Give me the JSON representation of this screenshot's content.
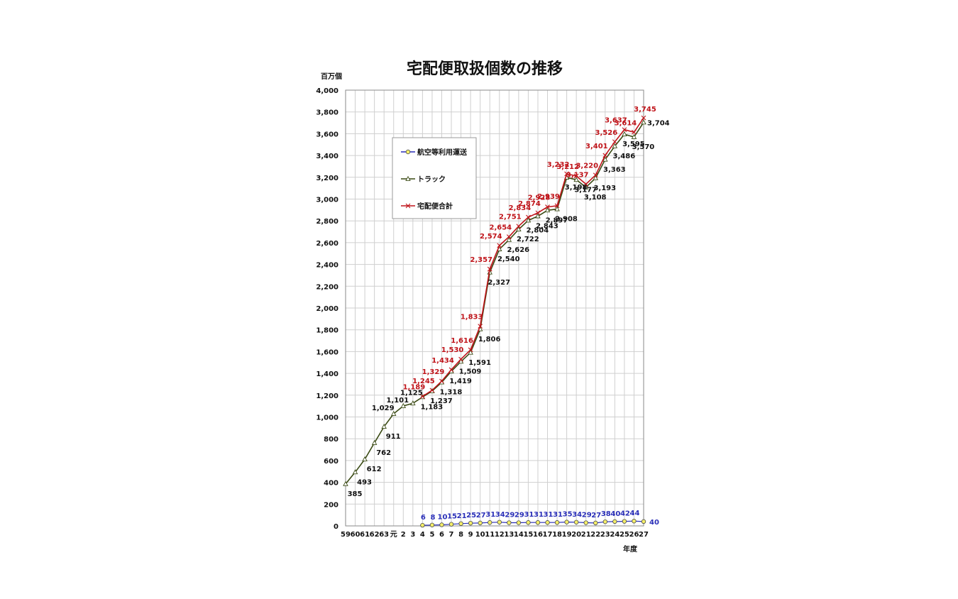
{
  "chart_data": {
    "type": "line",
    "title": "宅配便取扱個数の推移",
    "ylabel": "百万個",
    "xlabel": "年度",
    "ylim": [
      0,
      4000
    ],
    "yticks": [
      0,
      200,
      400,
      600,
      800,
      1000,
      1200,
      1400,
      1600,
      1800,
      2000,
      2200,
      2400,
      2600,
      2800,
      3000,
      3200,
      3400,
      3600,
      3800,
      4000
    ],
    "ytick_labels": [
      "0",
      "200",
      "400",
      "600",
      "800",
      "1,000",
      "1,200",
      "1,400",
      "1,600",
      "1,800",
      "2,000",
      "2,200",
      "2,400",
      "2,600",
      "2,800",
      "3,000",
      "3,200",
      "3,400",
      "3,600",
      "3,800",
      "4,000"
    ],
    "categories": [
      "59",
      "60",
      "61",
      "62",
      "63",
      "元",
      "2",
      "3",
      "4",
      "5",
      "6",
      "7",
      "8",
      "9",
      "10",
      "11",
      "12",
      "13",
      "14",
      "15",
      "16",
      "17",
      "18",
      "19",
      "20",
      "21",
      "22",
      "23",
      "24",
      "25",
      "26",
      "27"
    ],
    "grid": true,
    "legend_position": "upper-left inside plot",
    "series": [
      {
        "name": "航空等利用運送",
        "color": "#2a2fb8",
        "marker": "circle",
        "values": [
          null,
          null,
          null,
          null,
          null,
          null,
          null,
          null,
          6,
          8,
          10,
          15,
          21,
          25,
          27,
          31,
          34,
          29,
          29,
          31,
          31,
          31,
          31,
          35,
          34,
          29,
          27,
          38,
          40,
          42,
          44,
          40
        ],
        "labels": [
          null,
          null,
          null,
          null,
          null,
          null,
          null,
          null,
          "6",
          "8",
          "10",
          "15",
          "21",
          "25",
          "27",
          "31",
          "34",
          "29",
          "29",
          "31",
          "31",
          "31",
          "31",
          "35",
          "34",
          "29",
          "27",
          "38",
          "40",
          "42",
          "44",
          "40"
        ]
      },
      {
        "name": "トラック",
        "color": "#3a4a14",
        "marker": "triangle",
        "values": [
          385,
          493,
          612,
          762,
          911,
          1029,
          1101,
          1125,
          1183,
          1237,
          1318,
          1419,
          1509,
          1591,
          1806,
          2327,
          2540,
          2626,
          2722,
          2804,
          2843,
          2897,
          2908,
          3198,
          3177,
          3108,
          3193,
          3363,
          3486,
          3595,
          3570,
          3704
        ],
        "labels": [
          "385",
          "493",
          "612",
          "762",
          "911",
          "1,029",
          "1,101",
          "1,125",
          "1,183",
          "1,237",
          "1,318",
          "1,419",
          "1,509",
          "1,591",
          "1,806",
          "2,327",
          "2,540",
          "2,626",
          "2,722",
          "2,804",
          "2,843",
          "2,897",
          "2,908",
          "3,198",
          "3,177",
          "3,108",
          "3,193",
          "3,363",
          "3,486",
          "3,595",
          "3,570",
          "3,704"
        ]
      },
      {
        "name": "宅配便合計",
        "color": "#c0141a",
        "marker": "x",
        "values": [
          null,
          null,
          null,
          null,
          null,
          null,
          null,
          null,
          1189,
          1245,
          1329,
          1434,
          1530,
          1616,
          1833,
          2357,
          2574,
          2654,
          2751,
          2834,
          2874,
          2928,
          2939,
          3232,
          3212,
          3137,
          3220,
          3401,
          3526,
          3637,
          3614,
          3745
        ],
        "labels": [
          null,
          null,
          null,
          null,
          null,
          null,
          null,
          null,
          "1,189",
          "1,245",
          "1,329",
          "1,434",
          "1,530",
          "1,616",
          "1,833",
          "2,357",
          "2,574",
          "2,654",
          "2,751",
          "2,834",
          "2,874",
          "2,928",
          "2,939",
          "3,232",
          "3,212",
          "3,137",
          "3,220",
          "3,401",
          "3,526",
          "3,637",
          "3,614",
          "3,745"
        ]
      }
    ]
  }
}
